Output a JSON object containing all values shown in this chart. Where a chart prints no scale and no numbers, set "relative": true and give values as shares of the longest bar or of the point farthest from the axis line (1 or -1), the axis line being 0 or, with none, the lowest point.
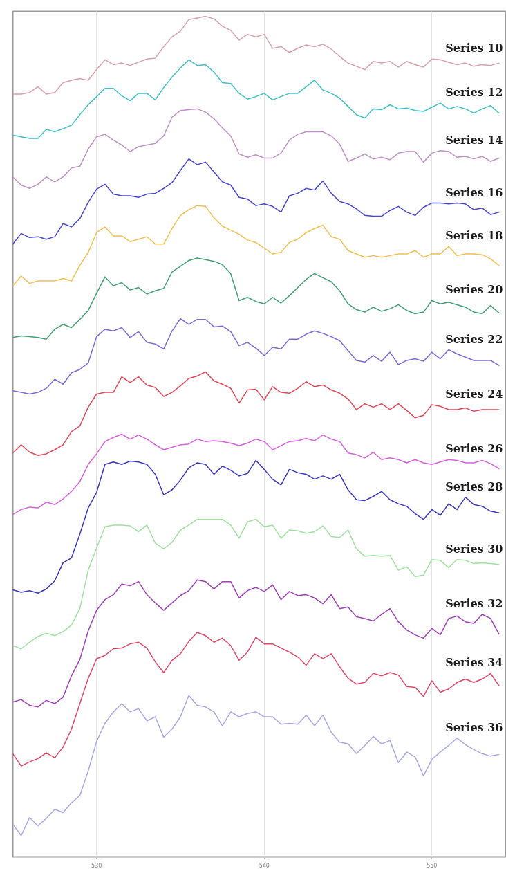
{
  "chart_data": {
    "type": "line",
    "relative": true,
    "grid": "x",
    "xlim": [
      525,
      554.4
    ],
    "xticks": [
      530,
      540,
      550
    ],
    "x": [
      525,
      525.5,
      526,
      526.5,
      527,
      527.5,
      528,
      528.5,
      529,
      529.5,
      530,
      530.5,
      531,
      531.5,
      532,
      532.5,
      533,
      533.5,
      534,
      534.5,
      535,
      535.5,
      536,
      536.5,
      537,
      537.5,
      538,
      538.5,
      539,
      539.5,
      540,
      540.5,
      541,
      541.5,
      542,
      542.5,
      543,
      543.5,
      544,
      544.5,
      545,
      545.5,
      546,
      546.5,
      547,
      547.5,
      548,
      548.5,
      549,
      549.5,
      550,
      550.5,
      551,
      551.5,
      552,
      552.5,
      553,
      553.5,
      554
    ],
    "series": [
      {
        "name": "Series 10",
        "color": "#d8a0a8",
        "values": [
          0.905,
          0.905,
          0.907,
          0.914,
          0.905,
          0.907,
          0.919,
          0.922,
          0.924,
          0.922,
          0.935,
          0.947,
          0.941,
          0.943,
          0.94,
          0.944,
          0.948,
          0.949,
          0.963,
          0.975,
          0.982,
          0.996,
          0.998,
          1.0,
          0.997,
          0.988,
          0.983,
          0.971,
          0.978,
          0.975,
          0.978,
          0.961,
          0.963,
          0.956,
          0.961,
          0.965,
          0.963,
          0.966,
          0.96,
          0.951,
          0.943,
          0.939,
          0.935,
          0.945,
          0.943,
          0.945,
          0.938,
          0.945,
          0.941,
          0.938,
          0.948,
          0.947,
          0.944,
          0.941,
          0.943,
          0.939,
          0.941,
          0.94,
          0.943
        ]
      },
      {
        "name": "Series 12",
        "color": "#40c0c8",
        "values": [
          0.855,
          0.853,
          0.851,
          0.851,
          0.862,
          0.859,
          0.863,
          0.867,
          0.88,
          0.892,
          0.902,
          0.912,
          0.912,
          0.903,
          0.897,
          0.906,
          0.906,
          0.898,
          0.913,
          0.926,
          0.937,
          0.947,
          0.94,
          0.941,
          0.932,
          0.919,
          0.918,
          0.906,
          0.899,
          0.902,
          0.906,
          0.898,
          0.902,
          0.906,
          0.906,
          0.914,
          0.922,
          0.91,
          0.906,
          0.9,
          0.89,
          0.88,
          0.876,
          0.887,
          0.886,
          0.892,
          0.887,
          0.888,
          0.885,
          0.884,
          0.889,
          0.894,
          0.887,
          0.89,
          0.887,
          0.882,
          0.887,
          0.891,
          0.882
        ]
      },
      {
        "name": "Series 14",
        "color": "#c090c8",
        "values": [
          0.804,
          0.794,
          0.79,
          0.795,
          0.804,
          0.798,
          0.804,
          0.815,
          0.817,
          0.838,
          0.853,
          0.856,
          0.849,
          0.843,
          0.835,
          0.841,
          0.843,
          0.845,
          0.854,
          0.877,
          0.885,
          0.886,
          0.887,
          0.883,
          0.875,
          0.864,
          0.854,
          0.832,
          0.828,
          0.831,
          0.827,
          0.827,
          0.833,
          0.849,
          0.856,
          0.859,
          0.859,
          0.859,
          0.854,
          0.844,
          0.823,
          0.827,
          0.832,
          0.826,
          0.828,
          0.825,
          0.833,
          0.835,
          0.835,
          0.822,
          0.833,
          0.836,
          0.835,
          0.828,
          0.829,
          0.826,
          0.829,
          0.823,
          0.827
        ]
      },
      {
        "name": "Series 16",
        "color": "#4848d0",
        "values": [
          0.722,
          0.735,
          0.73,
          0.731,
          0.728,
          0.731,
          0.747,
          0.743,
          0.753,
          0.773,
          0.789,
          0.795,
          0.783,
          0.781,
          0.781,
          0.779,
          0.783,
          0.784,
          0.79,
          0.797,
          0.812,
          0.826,
          0.819,
          0.822,
          0.81,
          0.798,
          0.794,
          0.779,
          0.777,
          0.769,
          0.771,
          0.768,
          0.761,
          0.781,
          0.784,
          0.79,
          0.788,
          0.799,
          0.784,
          0.774,
          0.771,
          0.765,
          0.757,
          0.756,
          0.756,
          0.763,
          0.768,
          0.761,
          0.757,
          0.767,
          0.772,
          0.772,
          0.771,
          0.772,
          0.771,
          0.764,
          0.766,
          0.758,
          0.761
        ]
      },
      {
        "name": "Series 18",
        "color": "#f0c050",
        "values": [
          0.671,
          0.683,
          0.674,
          0.677,
          0.677,
          0.677,
          0.68,
          0.677,
          0.696,
          0.712,
          0.736,
          0.743,
          0.732,
          0.732,
          0.725,
          0.728,
          0.731,
          0.722,
          0.722,
          0.741,
          0.757,
          0.764,
          0.769,
          0.768,
          0.754,
          0.744,
          0.739,
          0.734,
          0.727,
          0.724,
          0.717,
          0.71,
          0.712,
          0.724,
          0.728,
          0.736,
          0.741,
          0.745,
          0.731,
          0.728,
          0.714,
          0.71,
          0.706,
          0.708,
          0.706,
          0.708,
          0.71,
          0.71,
          0.714,
          0.706,
          0.71,
          0.71,
          0.719,
          0.708,
          0.71,
          0.71,
          0.709,
          0.704,
          0.696
        ]
      },
      {
        "name": "Series 20",
        "color": "#40a070",
        "values": [
          0.608,
          0.61,
          0.609,
          0.608,
          0.606,
          0.618,
          0.624,
          0.62,
          0.63,
          0.641,
          0.662,
          0.682,
          0.671,
          0.675,
          0.666,
          0.669,
          0.661,
          0.665,
          0.668,
          0.688,
          0.695,
          0.702,
          0.705,
          0.703,
          0.701,
          0.697,
          0.686,
          0.653,
          0.657,
          0.652,
          0.649,
          0.657,
          0.65,
          0.659,
          0.669,
          0.679,
          0.686,
          0.681,
          0.676,
          0.665,
          0.649,
          0.642,
          0.639,
          0.645,
          0.64,
          0.643,
          0.648,
          0.641,
          0.637,
          0.639,
          0.653,
          0.649,
          0.651,
          0.648,
          0.645,
          0.639,
          0.637,
          0.647,
          0.638
        ]
      },
      {
        "name": "Series 22",
        "color": "#8068d8",
        "values": [
          0.543,
          0.541,
          0.539,
          0.541,
          0.546,
          0.557,
          0.551,
          0.565,
          0.569,
          0.577,
          0.609,
          0.618,
          0.616,
          0.62,
          0.608,
          0.615,
          0.602,
          0.6,
          0.594,
          0.616,
          0.631,
          0.624,
          0.63,
          0.63,
          0.621,
          0.622,
          0.615,
          0.598,
          0.602,
          0.595,
          0.586,
          0.596,
          0.594,
          0.606,
          0.606,
          0.612,
          0.616,
          0.613,
          0.609,
          0.604,
          0.592,
          0.58,
          0.578,
          0.586,
          0.579,
          0.59,
          0.575,
          0.58,
          0.582,
          0.579,
          0.59,
          0.582,
          0.593,
          0.588,
          0.584,
          0.58,
          0.58,
          0.58,
          0.574
        ]
      },
      {
        "name": "Series 24",
        "color": "#e04858",
        "values": [
          0.467,
          0.477,
          0.468,
          0.464,
          0.466,
          0.471,
          0.477,
          0.493,
          0.5,
          0.523,
          0.539,
          0.541,
          0.541,
          0.56,
          0.553,
          0.56,
          0.55,
          0.547,
          0.536,
          0.541,
          0.549,
          0.558,
          0.561,
          0.566,
          0.555,
          0.551,
          0.546,
          0.528,
          0.544,
          0.545,
          0.532,
          0.548,
          0.541,
          0.54,
          0.546,
          0.554,
          0.548,
          0.55,
          0.544,
          0.54,
          0.533,
          0.52,
          0.527,
          0.523,
          0.527,
          0.52,
          0.527,
          0.519,
          0.51,
          0.513,
          0.526,
          0.524,
          0.52,
          0.52,
          0.522,
          0.518,
          0.52,
          0.52,
          0.52
        ]
      },
      {
        "name": "Series 26",
        "color": "#d860e0",
        "values": [
          0.392,
          0.398,
          0.401,
          0.4,
          0.407,
          0.404,
          0.411,
          0.42,
          0.432,
          0.453,
          0.466,
          0.481,
          0.486,
          0.49,
          0.484,
          0.489,
          0.484,
          0.477,
          0.471,
          0.474,
          0.477,
          0.478,
          0.484,
          0.481,
          0.482,
          0.481,
          0.479,
          0.476,
          0.479,
          0.484,
          0.481,
          0.471,
          0.476,
          0.481,
          0.482,
          0.485,
          0.482,
          0.489,
          0.484,
          0.481,
          0.467,
          0.465,
          0.461,
          0.468,
          0.459,
          0.461,
          0.459,
          0.455,
          0.459,
          0.455,
          0.453,
          0.456,
          0.459,
          0.458,
          0.455,
          0.455,
          0.458,
          0.454,
          0.448
        ]
      },
      {
        "name": "Series 28",
        "color": "#3838c0",
        "values": [
          0.3,
          0.297,
          0.299,
          0.296,
          0.301,
          0.311,
          0.333,
          0.339,
          0.368,
          0.4,
          0.419,
          0.453,
          0.456,
          0.453,
          0.457,
          0.456,
          0.453,
          0.441,
          0.416,
          0.422,
          0.434,
          0.449,
          0.455,
          0.453,
          0.441,
          0.451,
          0.446,
          0.439,
          0.442,
          0.458,
          0.447,
          0.435,
          0.428,
          0.447,
          0.443,
          0.441,
          0.435,
          0.439,
          0.435,
          0.441,
          0.422,
          0.41,
          0.409,
          0.414,
          0.42,
          0.41,
          0.405,
          0.402,
          0.393,
          0.386,
          0.398,
          0.391,
          0.405,
          0.398,
          0.413,
          0.404,
          0.402,
          0.396,
          0.394
        ]
      },
      {
        "name": "Series 30",
        "color": "#a0e0a0",
        "values": [
          0.232,
          0.228,
          0.236,
          0.243,
          0.247,
          0.244,
          0.249,
          0.257,
          0.277,
          0.324,
          0.351,
          0.377,
          0.379,
          0.379,
          0.378,
          0.371,
          0.379,
          0.357,
          0.35,
          0.358,
          0.373,
          0.379,
          0.386,
          0.386,
          0.386,
          0.386,
          0.379,
          0.363,
          0.383,
          0.386,
          0.377,
          0.379,
          0.363,
          0.373,
          0.372,
          0.369,
          0.371,
          0.378,
          0.365,
          0.364,
          0.373,
          0.35,
          0.341,
          0.342,
          0.341,
          0.342,
          0.324,
          0.328,
          0.316,
          0.318,
          0.337,
          0.336,
          0.327,
          0.337,
          0.336,
          0.332,
          0.333,
          0.332,
          0.331
        ]
      },
      {
        "name": "Series 32",
        "color": "#a040b8",
        "values": [
          0.163,
          0.166,
          0.159,
          0.157,
          0.165,
          0.161,
          0.169,
          0.195,
          0.215,
          0.25,
          0.275,
          0.288,
          0.294,
          0.307,
          0.305,
          0.31,
          0.294,
          0.284,
          0.275,
          0.284,
          0.293,
          0.299,
          0.312,
          0.31,
          0.301,
          0.31,
          0.31,
          0.29,
          0.299,
          0.303,
          0.298,
          0.306,
          0.288,
          0.298,
          0.293,
          0.294,
          0.29,
          0.283,
          0.294,
          0.277,
          0.279,
          0.267,
          0.265,
          0.262,
          0.27,
          0.277,
          0.261,
          0.251,
          0.245,
          0.241,
          0.253,
          0.245,
          0.265,
          0.268,
          0.261,
          0.259,
          0.27,
          0.265,
          0.246
        ]
      },
      {
        "name": "Series 34",
        "color": "#e04868",
        "values": [
          0.1,
          0.085,
          0.09,
          0.094,
          0.101,
          0.095,
          0.108,
          0.13,
          0.161,
          0.192,
          0.216,
          0.22,
          0.228,
          0.229,
          0.234,
          0.236,
          0.229,
          0.212,
          0.199,
          0.214,
          0.222,
          0.237,
          0.248,
          0.244,
          0.236,
          0.241,
          0.232,
          0.214,
          0.224,
          0.242,
          0.234,
          0.234,
          0.229,
          0.224,
          0.218,
          0.208,
          0.222,
          0.216,
          0.222,
          0.206,
          0.192,
          0.185,
          0.187,
          0.198,
          0.195,
          0.199,
          0.196,
          0.182,
          0.181,
          0.17,
          0.189,
          0.175,
          0.179,
          0.187,
          0.191,
          0.187,
          0.191,
          0.198,
          0.183
        ]
      },
      {
        "name": "Series 36",
        "color": "#a8a8e8",
        "values": [
          0.014,
          0.0,
          0.022,
          0.012,
          0.021,
          0.032,
          0.028,
          0.04,
          0.049,
          0.079,
          0.115,
          0.137,
          0.151,
          0.161,
          0.151,
          0.155,
          0.14,
          0.145,
          0.12,
          0.13,
          0.145,
          0.171,
          0.159,
          0.157,
          0.151,
          0.134,
          0.151,
          0.145,
          0.149,
          0.151,
          0.145,
          0.145,
          0.136,
          0.137,
          0.136,
          0.147,
          0.134,
          0.147,
          0.126,
          0.114,
          0.112,
          0.1,
          0.11,
          0.121,
          0.112,
          0.116,
          0.089,
          0.102,
          0.096,
          0.073,
          0.093,
          0.102,
          0.11,
          0.119,
          0.111,
          0.105,
          0.1,
          0.097,
          0.099
        ]
      }
    ]
  }
}
